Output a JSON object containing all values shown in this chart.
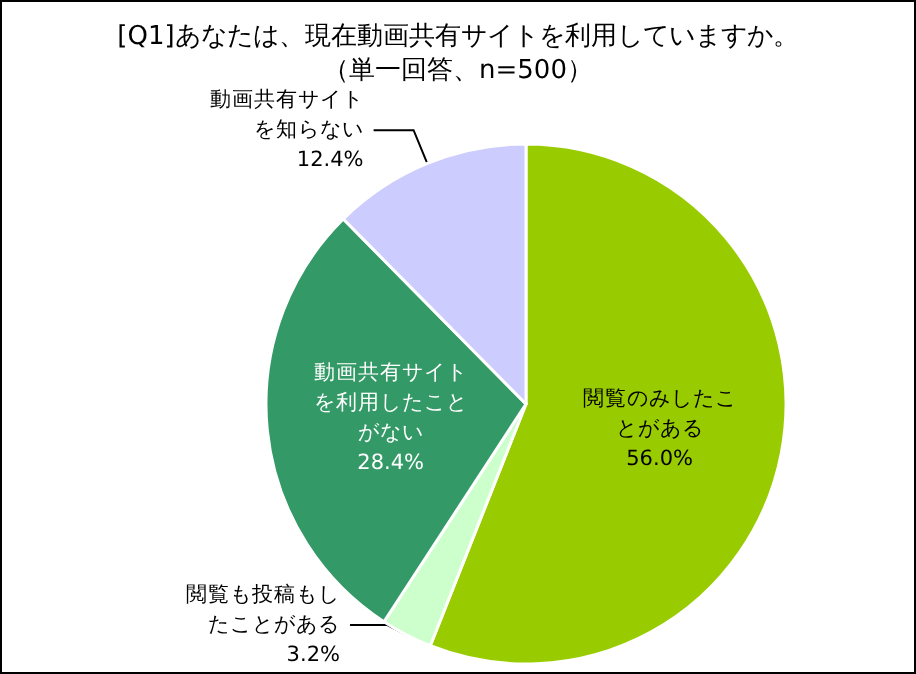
{
  "chart_data": {
    "type": "pie",
    "title": "[Q1]あなたは、現在動画共有サイトを利用していますか。",
    "subtitle": "（単一回答、n=500）",
    "categories": [
      "閲覧のみしたことがある",
      "閲覧も投稿もしたことがある",
      "動画共有サイトを利用したことがない",
      "動画共有サイトを知らない"
    ],
    "values": [
      56.0,
      3.2,
      28.4,
      12.4
    ],
    "colors": [
      "#99cc00",
      "#ccffcc",
      "#339966",
      "#ccccff"
    ],
    "value_labels": [
      "56.0%",
      "3.2%",
      "28.4%",
      "12.4%"
    ],
    "legend": false
  }
}
